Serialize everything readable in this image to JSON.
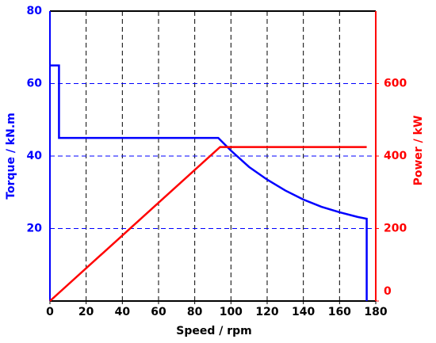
{
  "chart_data": {
    "type": "line",
    "xlabel": "Speed / rpm",
    "ylabel": "Torque / kN.m",
    "y2label": "Power / kW",
    "xlim": [
      0,
      180
    ],
    "xticks": [
      0,
      20,
      40,
      60,
      80,
      100,
      120,
      140,
      160,
      180
    ],
    "ylim": [
      0,
      80
    ],
    "yticks": [
      20,
      40,
      60,
      80
    ],
    "y2lim": [
      0,
      800
    ],
    "y2ticks": [
      0,
      200,
      400,
      600
    ],
    "grid": true,
    "series": [
      {
        "name": "Torque",
        "color": "#0000ff",
        "axis": "y",
        "x": [
          0,
          5,
          5,
          93,
          100,
          110,
          120,
          130,
          140,
          150,
          160,
          170,
          175,
          175
        ],
        "values": [
          65,
          65,
          45,
          45,
          41.5,
          37,
          33.5,
          30.5,
          28,
          26,
          24.5,
          23.2,
          22.7,
          0
        ]
      },
      {
        "name": "Power",
        "color": "#ff0000",
        "axis": "y2",
        "x": [
          0,
          94,
          175
        ],
        "values": [
          0,
          425,
          425
        ]
      }
    ]
  }
}
